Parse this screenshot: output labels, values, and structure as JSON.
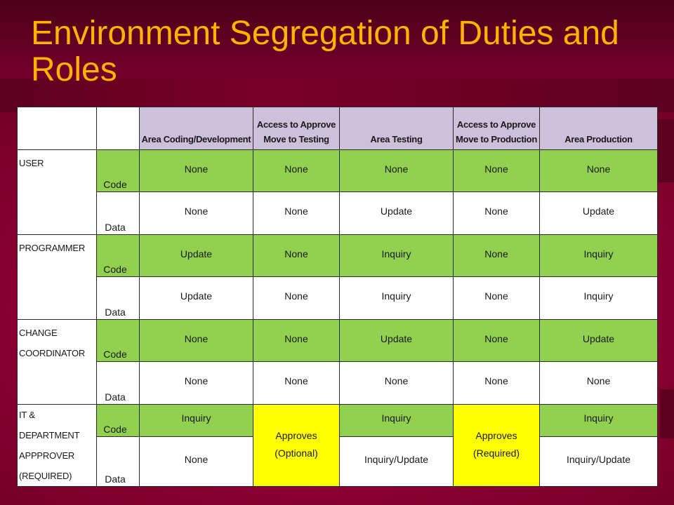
{
  "title": "Environment Segregation of Duties and Roles",
  "columns": [
    {
      "label": "Area Coding/Development"
    },
    {
      "line1": "Access to Approve",
      "line2": "Move to Testing"
    },
    {
      "label": "Area Testing"
    },
    {
      "line1": "Access to Approve",
      "line2": "Move to Production"
    },
    {
      "label": "Area Production"
    }
  ],
  "row_kinds": {
    "code": "Code",
    "data": "Data"
  },
  "roles": [
    {
      "name_lines": [
        "USER"
      ],
      "code": [
        "None",
        "None",
        "None",
        "None",
        "None"
      ],
      "data": [
        "None",
        "None",
        "Update",
        "None",
        "Update"
      ]
    },
    {
      "name_lines": [
        "PROGRAMMER"
      ],
      "code": [
        "Update",
        "None",
        "Inquiry",
        "None",
        "Inquiry"
      ],
      "data": [
        "Update",
        "None",
        "Inquiry",
        "None",
        "Inquiry"
      ]
    },
    {
      "name_lines": [
        "CHANGE",
        "COORDINATOR"
      ],
      "code": [
        "None",
        "None",
        "Update",
        "None",
        "Update"
      ],
      "data": [
        "None",
        "None",
        "None",
        "None",
        "None"
      ]
    },
    {
      "name_lines": [
        "IT & DEPARTMENT",
        "APPPROVER",
        "(REQUIRED)"
      ],
      "code": [
        "Inquiry",
        "Inquiry",
        "Inquiry"
      ],
      "data": [
        "None",
        "Inquiry/Update",
        "Inquiry/Update"
      ],
      "approve_testing": [
        "Approves",
        "(Optional)"
      ],
      "approve_production": [
        "Approves",
        "(Required)"
      ]
    }
  ],
  "colors": {
    "title": "#ffb300",
    "header": "#ccc0da",
    "green": "#92d050",
    "yellow": "#ffff00",
    "background": "#8c0030"
  }
}
